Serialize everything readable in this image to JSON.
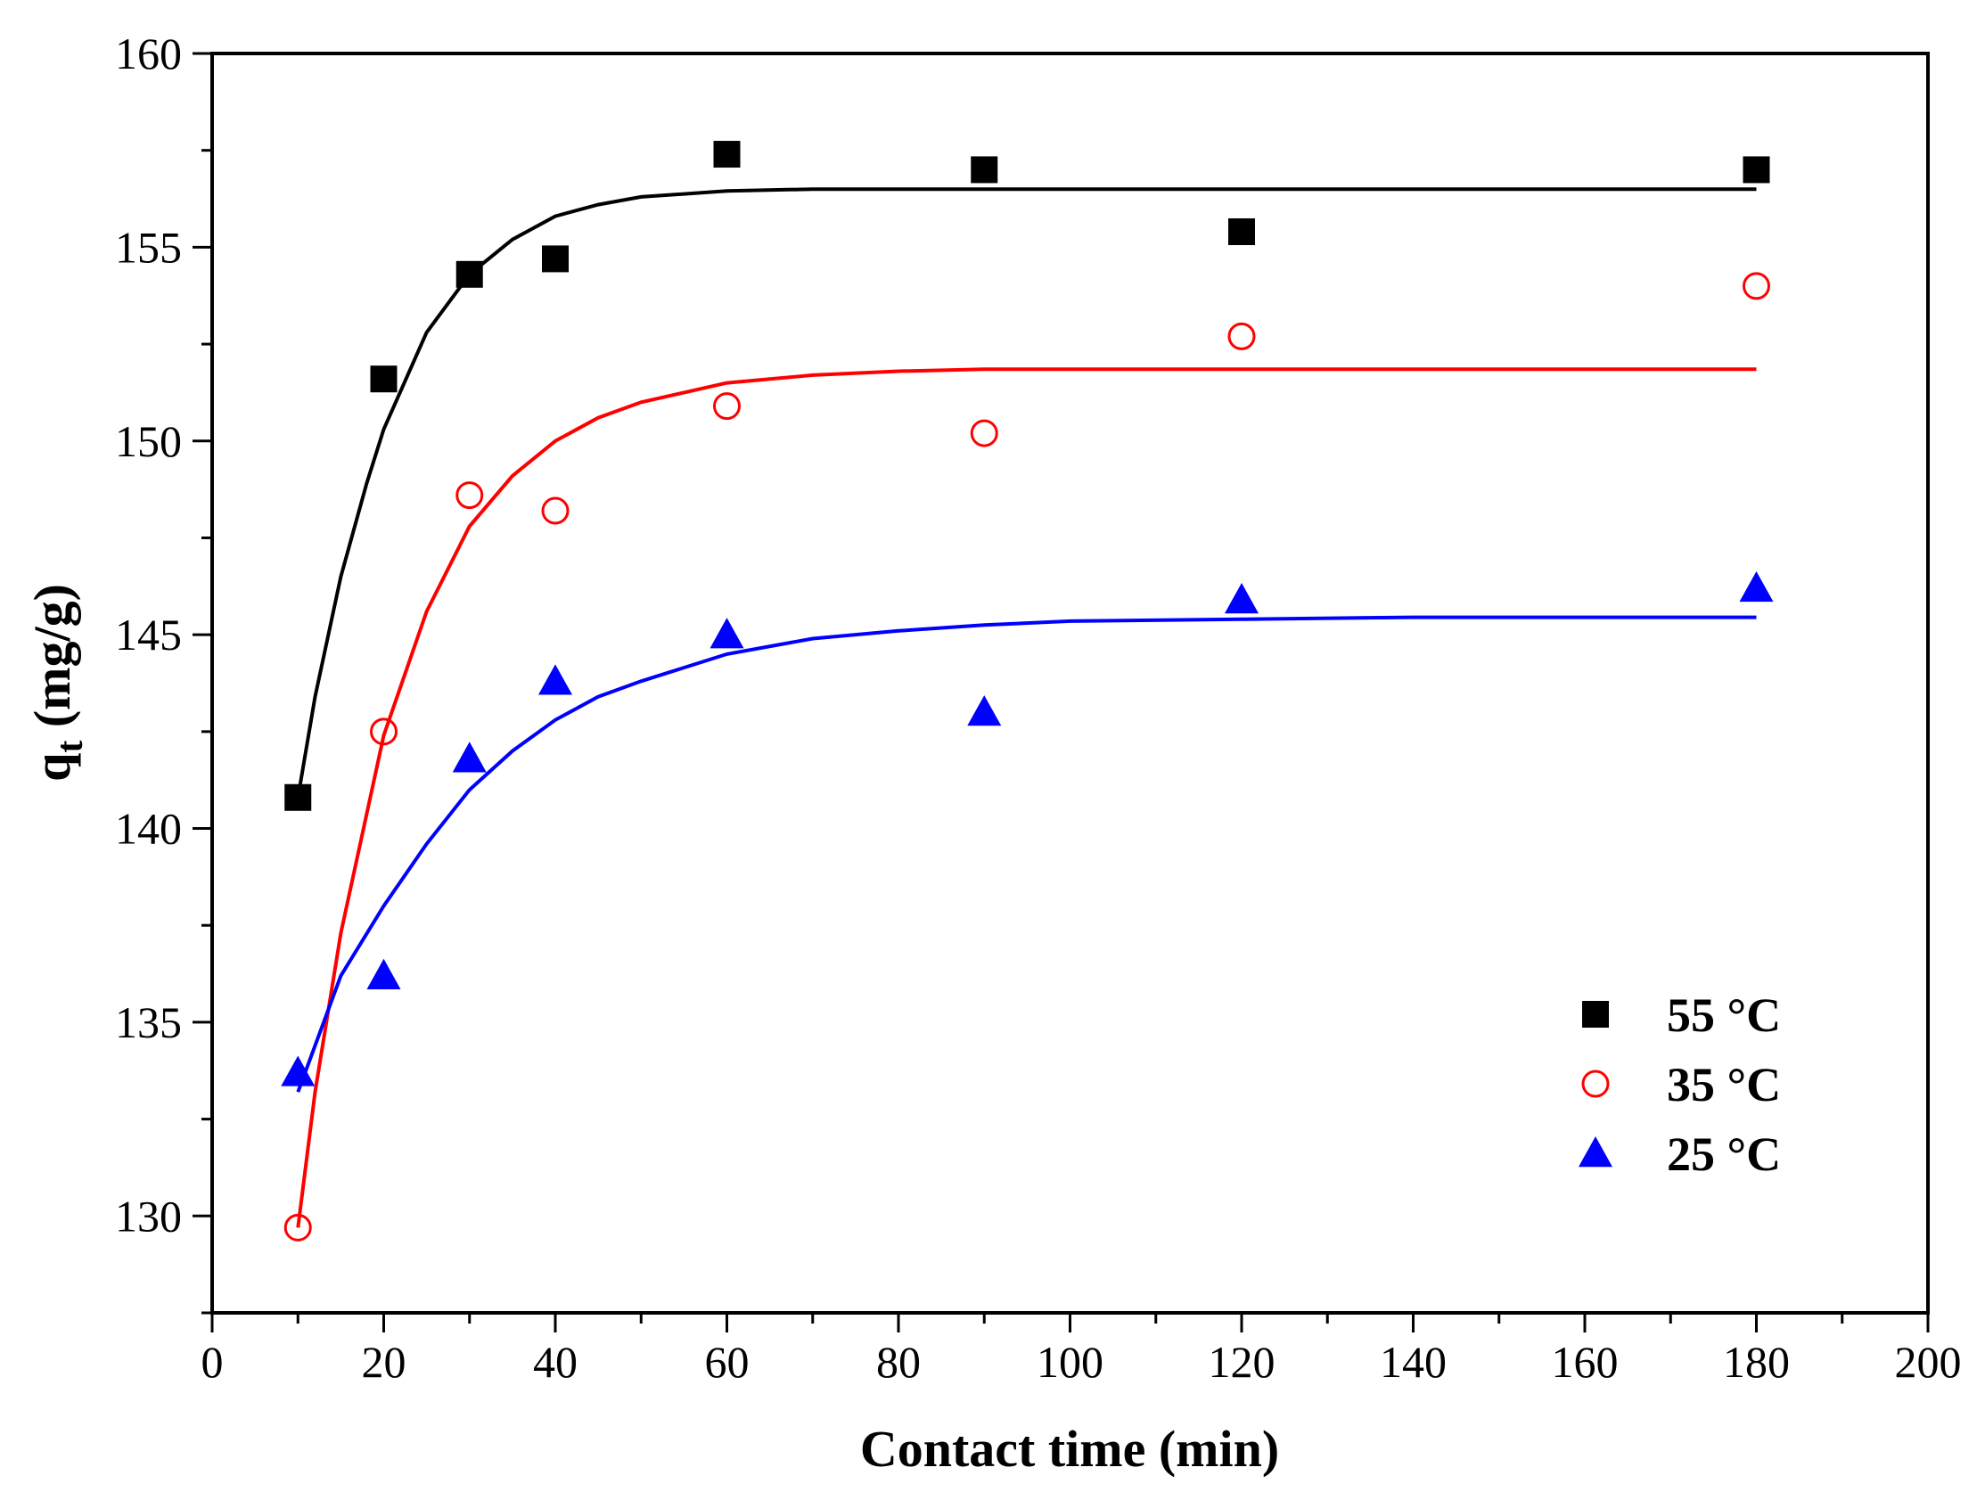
{
  "chart_data": {
    "type": "scatter",
    "xlabel": "Contact time (min)",
    "ylabel_main": "q",
    "ylabel_sub": "t",
    "ylabel_unit": " (mg/g)",
    "xlim": [
      0,
      200
    ],
    "ylim": [
      127.5,
      160
    ],
    "xticks": [
      0,
      20,
      40,
      60,
      80,
      100,
      120,
      140,
      160,
      180,
      200
    ],
    "yticks": [
      130,
      135,
      140,
      145,
      150,
      155,
      160
    ],
    "grid": false,
    "legend_position": "bottom-right",
    "series": [
      {
        "name": "55 °C",
        "marker": "square",
        "color": "#000000",
        "x": [
          10,
          20,
          30,
          40,
          60,
          90,
          120,
          180
        ],
        "y": [
          140.8,
          151.6,
          154.3,
          154.7,
          157.4,
          157.0,
          155.4,
          157.0
        ],
        "fit": {
          "x": [
            10,
            12,
            15,
            18,
            20,
            25,
            30,
            35,
            40,
            45,
            50,
            60,
            70,
            80,
            90,
            100,
            120,
            140,
            160,
            180
          ],
          "y": [
            140.8,
            143.4,
            146.5,
            148.9,
            150.3,
            152.8,
            154.3,
            155.2,
            155.8,
            156.1,
            156.3,
            156.45,
            156.5,
            156.5,
            156.5,
            156.5,
            156.5,
            156.5,
            156.5,
            156.5
          ]
        }
      },
      {
        "name": "35 °C",
        "marker": "circle-open",
        "color": "#ff0000",
        "x": [
          10,
          20,
          30,
          40,
          60,
          90,
          120,
          180
        ],
        "y": [
          129.7,
          142.5,
          148.6,
          148.2,
          150.9,
          150.2,
          152.7,
          154.0
        ],
        "fit": {
          "x": [
            10,
            12,
            15,
            20,
            25,
            30,
            35,
            40,
            45,
            50,
            60,
            70,
            80,
            90,
            100,
            120,
            140,
            160,
            180
          ],
          "y": [
            129.7,
            133.2,
            137.3,
            142.4,
            145.6,
            147.8,
            149.1,
            150.0,
            150.6,
            151.0,
            151.5,
            151.7,
            151.8,
            151.85,
            151.85,
            151.85,
            151.85,
            151.85,
            151.85
          ]
        }
      },
      {
        "name": "25 °C",
        "marker": "triangle",
        "color": "#0000ff",
        "x": [
          10,
          20,
          30,
          40,
          60,
          90,
          120,
          180
        ],
        "y": [
          133.7,
          136.2,
          141.8,
          143.8,
          145.0,
          143.0,
          145.9,
          146.2
        ],
        "fit": {
          "x": [
            10,
            15,
            20,
            25,
            30,
            35,
            40,
            45,
            50,
            60,
            70,
            80,
            90,
            100,
            120,
            140,
            160,
            180
          ],
          "y": [
            133.2,
            136.2,
            138.0,
            139.6,
            141.0,
            142.0,
            142.8,
            143.4,
            143.8,
            144.5,
            144.9,
            145.1,
            145.25,
            145.35,
            145.4,
            145.45,
            145.45,
            145.45
          ]
        }
      }
    ]
  }
}
